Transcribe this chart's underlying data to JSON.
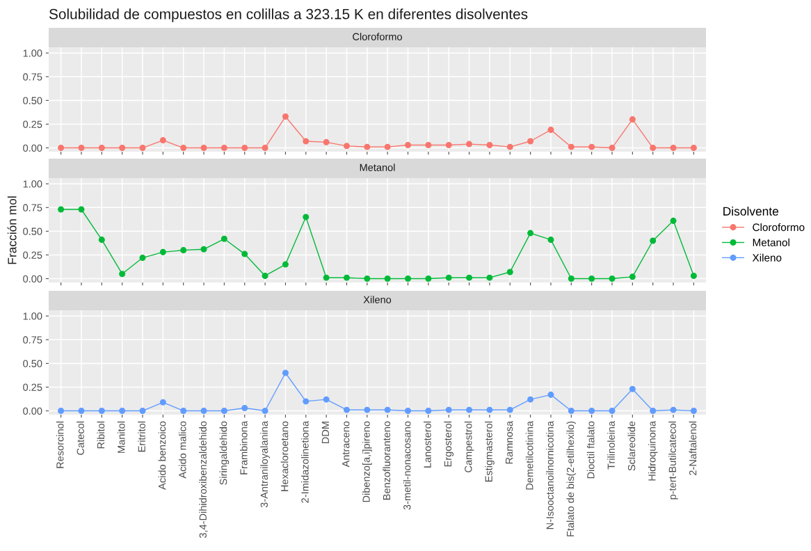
{
  "chart_data": [
    {
      "type": "line",
      "title": "Solubilidad de compuestos en colillas a 323.15 K en diferentes disolventes",
      "subtitle": "Cloroformo",
      "series": [
        {
          "name": "Cloroformo",
          "color": "#f8766d",
          "values": [
            0,
            0,
            0,
            0,
            0,
            0.08,
            0,
            0,
            0,
            0,
            0,
            0.33,
            0.07,
            0.06,
            0.02,
            0.01,
            0.01,
            0.03,
            0.03,
            0.03,
            0.04,
            0.03,
            0.01,
            0.07,
            0.19,
            0.01,
            0.01,
            0,
            0.3,
            0,
            0,
            0
          ]
        }
      ],
      "ylim": [
        -0.04,
        1.06
      ],
      "yticks": [
        {
          "value": 0,
          "label": "0.00"
        },
        {
          "value": 0.25,
          "label": "0.25"
        },
        {
          "value": 0.5,
          "label": "0.50"
        },
        {
          "value": 0.75,
          "label": "0.75"
        },
        {
          "value": 1,
          "label": "1.00"
        }
      ],
      "tick_labels": "y",
      "grid": true,
      "marker": "circle",
      "line_style": "solid"
    },
    {
      "type": "line",
      "subtitle": "Metanol",
      "ylabel": "Fracción mol",
      "legend_title": "Disolvente",
      "legend": "right",
      "series": [
        {
          "name": "Metanol",
          "color": "#00ba38",
          "values": [
            0.73,
            0.73,
            0.41,
            0.05,
            0.22,
            0.28,
            0.3,
            0.31,
            0.42,
            0.26,
            0.03,
            0.15,
            0.65,
            0.01,
            0.01,
            0,
            0,
            0,
            0,
            0.01,
            0.01,
            0.01,
            0.07,
            0.48,
            0.41,
            0,
            0,
            0,
            0.02,
            0.4,
            0.61,
            0.03
          ]
        }
      ],
      "ylim": [
        -0.04,
        1.06
      ],
      "yticks": [
        {
          "value": 0,
          "label": "0.00"
        },
        {
          "value": 0.25,
          "label": "0.25"
        },
        {
          "value": 0.5,
          "label": "0.50"
        },
        {
          "value": 0.75,
          "label": "0.75"
        },
        {
          "value": 1,
          "label": "1.00"
        }
      ],
      "tick_labels": "y",
      "grid": true,
      "marker": "circle",
      "line_style": "solid"
    },
    {
      "type": "line",
      "subtitle": "Xileno",
      "categories": [
        "Resorcinol",
        "Catecol",
        "Ribitol",
        "Manitol",
        "Eritritol",
        "Acido benzoico",
        "Acido malico",
        "3,4-Dihidroxibenzaldehido",
        "Siringaldehido",
        "Frambinona",
        "3-Antraniloyalanina",
        "Hexacloroetano",
        "2-Imidazolinetiona",
        "DDM",
        "Antraceno",
        "Dibenzo[a,i]pireno",
        "Benzofluoranteno",
        "3-metil-nonacosano",
        "Lanosterol",
        "Ergosterol",
        "Campestrol",
        "Estigmasterol",
        "Ramnosa",
        "Demetilcotinina",
        "N-Isooctanoilnornicotina",
        "Ftalato de bis(2-etilhexilo)",
        "Dioctil ftalato",
        "Trilinoleina",
        "Sclareolide",
        "Hidroquinona",
        "p-tert-Butilcatecol",
        "2-Naftalenol"
      ],
      "series": [
        {
          "name": "Xileno",
          "color": "#619cff",
          "values": [
            0,
            0,
            0,
            0,
            0,
            0.09,
            0,
            0,
            0,
            0.03,
            0,
            0.4,
            0.1,
            0.12,
            0.01,
            0.01,
            0.01,
            0,
            0,
            0.01,
            0.01,
            0.01,
            0.01,
            0.12,
            0.17,
            0,
            0,
            0,
            0.23,
            0,
            0.01,
            0
          ]
        }
      ],
      "ylim": [
        -0.04,
        1.06
      ],
      "yticks": [
        {
          "value": 0,
          "label": "0.00"
        },
        {
          "value": 0.25,
          "label": "0.25"
        },
        {
          "value": 0.5,
          "label": "0.50"
        },
        {
          "value": 0.75,
          "label": "0.75"
        },
        {
          "value": 1,
          "label": "1.00"
        }
      ],
      "grid": true,
      "marker": "circle",
      "line_style": "solid"
    }
  ]
}
